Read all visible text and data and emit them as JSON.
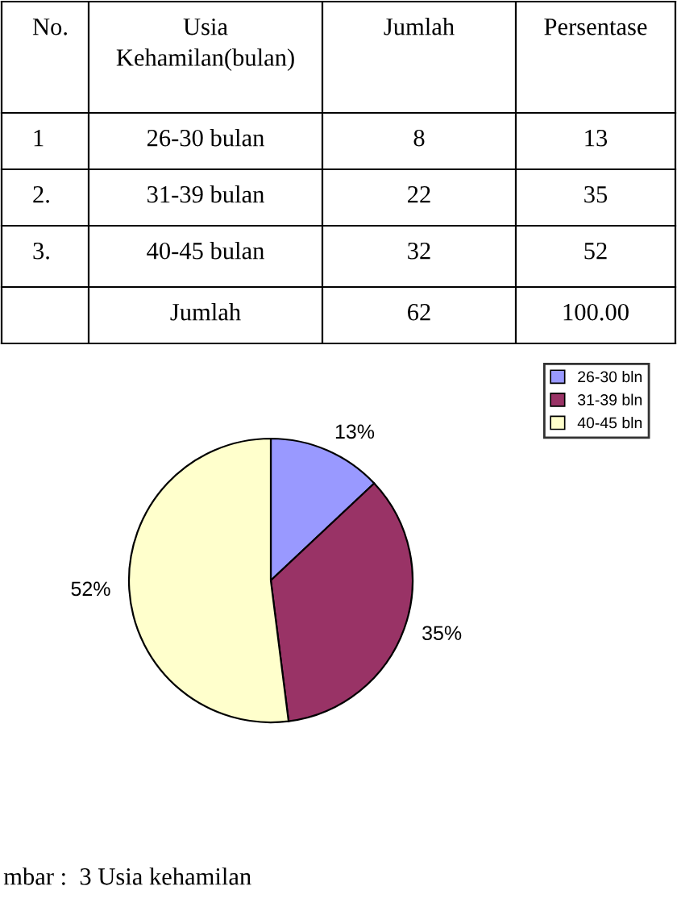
{
  "chart_data": [
    {
      "type": "other",
      "annotations": [
        "No.",
        "Usia\nKehamilan(bulan)",
        "Jumlah",
        "Persentase",
        "1",
        "26-30 bulan",
        "8",
        "13",
        "2.",
        "31-39 bulan",
        "22",
        "35",
        "3.",
        "40-45 bulan",
        "32",
        "52",
        null,
        "Jumlah",
        "62",
        "100.00"
      ]
    },
    {
      "type": "pie",
      "categories": [
        "26-30 bln",
        "31-39 bln",
        "40-45 bln"
      ],
      "values": [
        13,
        35,
        52
      ],
      "colors": [
        "#9999ff",
        "#993366",
        "#ffffcc"
      ],
      "value_labels": [
        "13%",
        "35%",
        "52%"
      ],
      "legend": "right",
      "annotations": [
        "mbar :  3 Usia kehamilan"
      ]
    }
  ]
}
